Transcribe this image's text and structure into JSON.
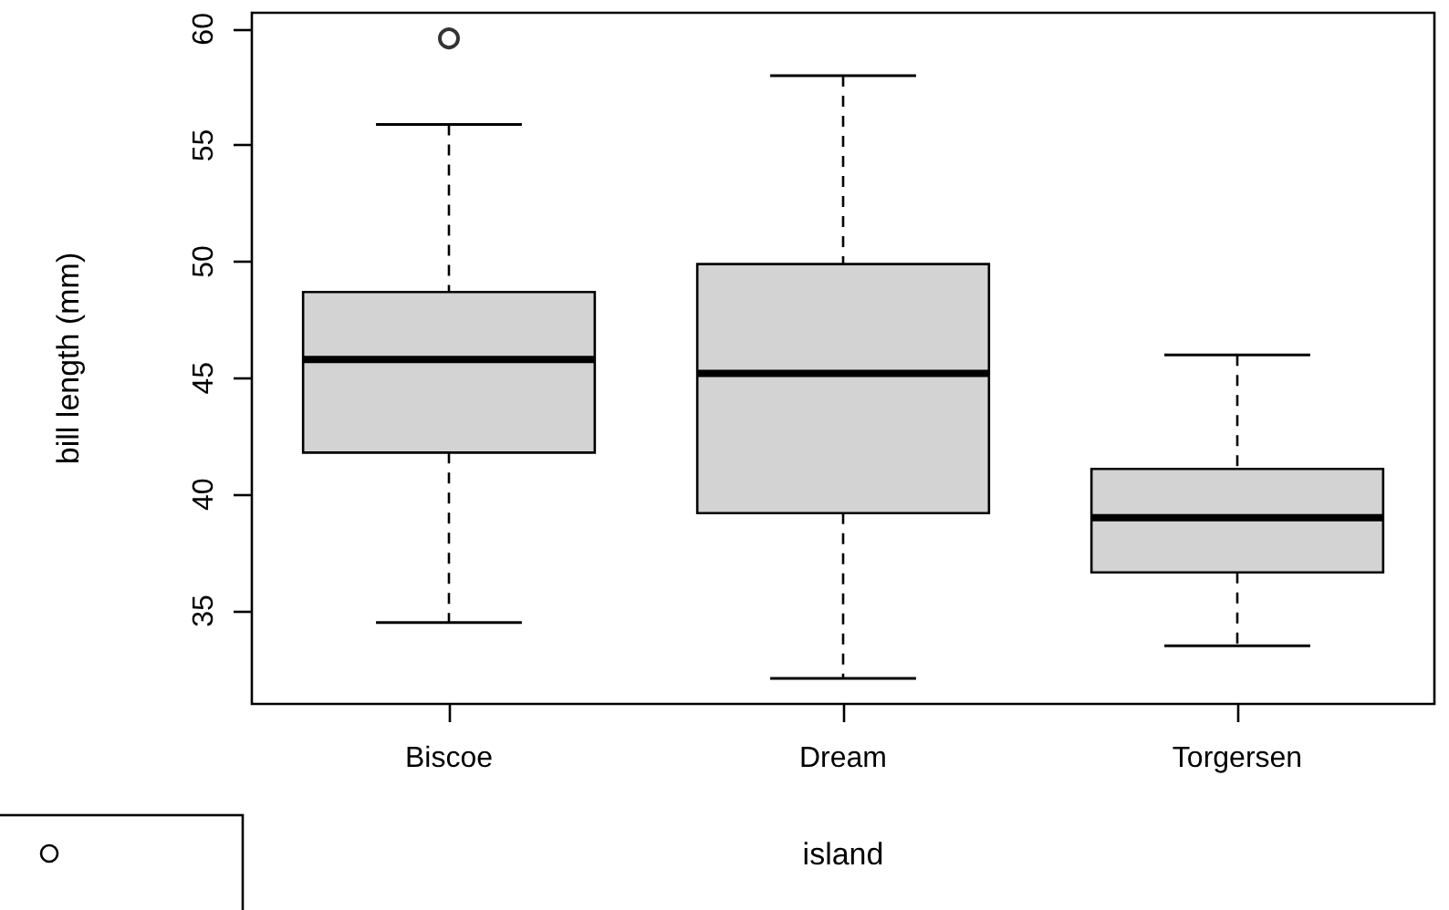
{
  "chart_data": {
    "type": "box",
    "xlabel": "island",
    "ylabel": "bill length (mm)",
    "categories": [
      "Biscoe",
      "Dream",
      "Torgersen"
    ],
    "series": [
      {
        "color": "#d3d3d3",
        "boxes": [
          {
            "low": 34.5,
            "q1": 41.8,
            "median": 45.8,
            "q3": 48.7,
            "high": 55.9,
            "outliers": [
              59.6
            ]
          },
          {
            "low": 32.1,
            "q1": 39.2,
            "median": 45.2,
            "q3": 49.9,
            "high": 58.0
          },
          {
            "low": 33.5,
            "q1": 36.65,
            "median": 39.0,
            "q3": 41.1,
            "high": 46.0
          }
        ]
      }
    ],
    "ylim": [
      31,
      60.7
    ],
    "yticks": [
      35,
      40,
      45,
      50,
      55,
      60
    ],
    "grid": false,
    "marker": "circle",
    "line_style": "dashed"
  }
}
